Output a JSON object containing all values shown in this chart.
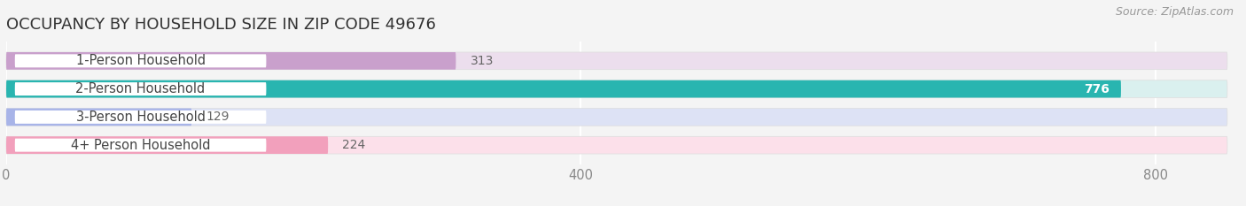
{
  "title": "OCCUPANCY BY HOUSEHOLD SIZE IN ZIP CODE 49676",
  "source": "Source: ZipAtlas.com",
  "categories": [
    "1-Person Household",
    "2-Person Household",
    "3-Person Household",
    "4+ Person Household"
  ],
  "values": [
    313,
    776,
    129,
    224
  ],
  "bar_colors": [
    "#c9a0cc",
    "#29b5b0",
    "#a8b4e8",
    "#f2a0bc"
  ],
  "bar_bg_colors": [
    "#ecdeed",
    "#daf0ef",
    "#dde2f5",
    "#fce0ea"
  ],
  "value_inside": [
    false,
    true,
    false,
    false
  ],
  "xlim": [
    0,
    850
  ],
  "xticks": [
    0,
    400,
    800
  ],
  "background_color": "#f4f4f4",
  "title_fontsize": 13,
  "label_fontsize": 10.5,
  "value_fontsize": 10,
  "source_fontsize": 9,
  "bar_height": 0.62,
  "rounding_size": 0.28
}
